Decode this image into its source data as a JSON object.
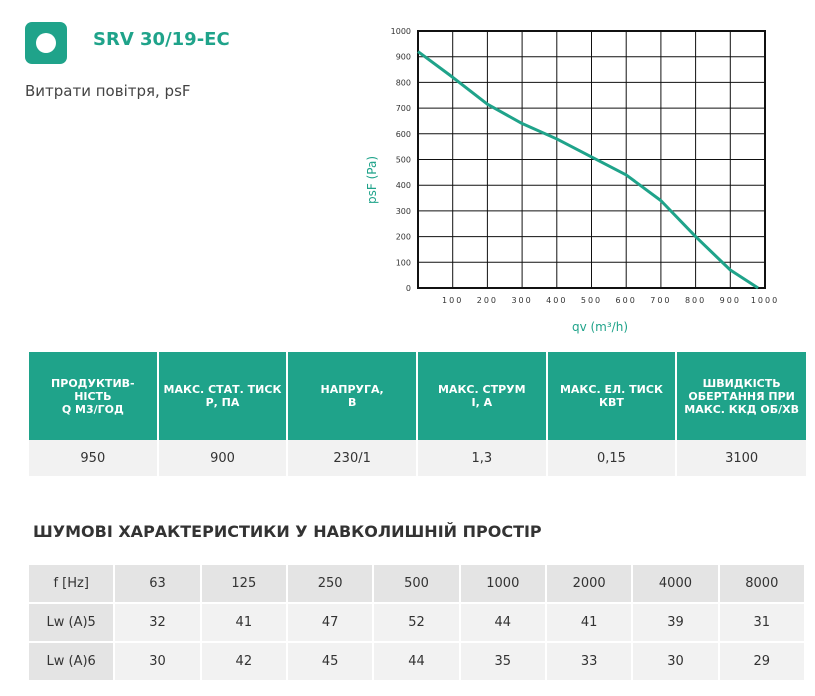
{
  "header": {
    "title": "SRV 30/19-EC",
    "subtitle": "Витрати повітря, psF"
  },
  "chart_data": {
    "type": "line",
    "x_label": "qv (m³/h)",
    "y_label": "psF (Pa)",
    "x": [
      0,
      100,
      200,
      300,
      400,
      500,
      600,
      700,
      800,
      900,
      980
    ],
    "series": [
      {
        "color": "#1fa38a",
        "values": [
          920,
          820,
          715,
          640,
          580,
          510,
          440,
          340,
          200,
          70,
          0
        ]
      }
    ],
    "xlim": [
      0,
      1000
    ],
    "ylim": [
      0,
      1000
    ],
    "xticks": [
      100,
      200,
      300,
      400,
      500,
      600,
      700,
      800,
      900,
      1000
    ],
    "yticks": [
      0,
      100,
      200,
      300,
      400,
      500,
      600,
      700,
      800,
      900,
      1000
    ],
    "grid": true
  },
  "specs": {
    "headers": [
      "ПРОДУКТИВ-\nНІСТЬ\nQ М3/ГОД",
      "МАКС. СТАТ. ТИСК\nР, ПА",
      "НАПРУГА,\nВ",
      "МАКС. СТРУМ\nI, А",
      "МАКС. ЕЛ. ТИСК\nКВТ",
      "ШВИДКІСТЬ\nОБЕРТАННЯ ПРИ\nМАКС. ККД  ОБ/ХВ"
    ],
    "values": [
      "950",
      "900",
      "230/1",
      "1,3",
      "0,15",
      "3100"
    ]
  },
  "noise": {
    "title": "ШУМОВІ ХАРАКТЕРИСТИКИ У НАВКОЛИШНІЙ ПРОСТІР",
    "rows": [
      [
        "f [Hz]",
        "63",
        "125",
        "250",
        "500",
        "1000",
        "2000",
        "4000",
        "8000"
      ],
      [
        "Lw (A)5",
        "32",
        "41",
        "47",
        "52",
        "44",
        "41",
        "39",
        "31"
      ],
      [
        "Lw (A)6",
        "30",
        "42",
        "45",
        "44",
        "35",
        "33",
        "30",
        "29"
      ]
    ]
  }
}
